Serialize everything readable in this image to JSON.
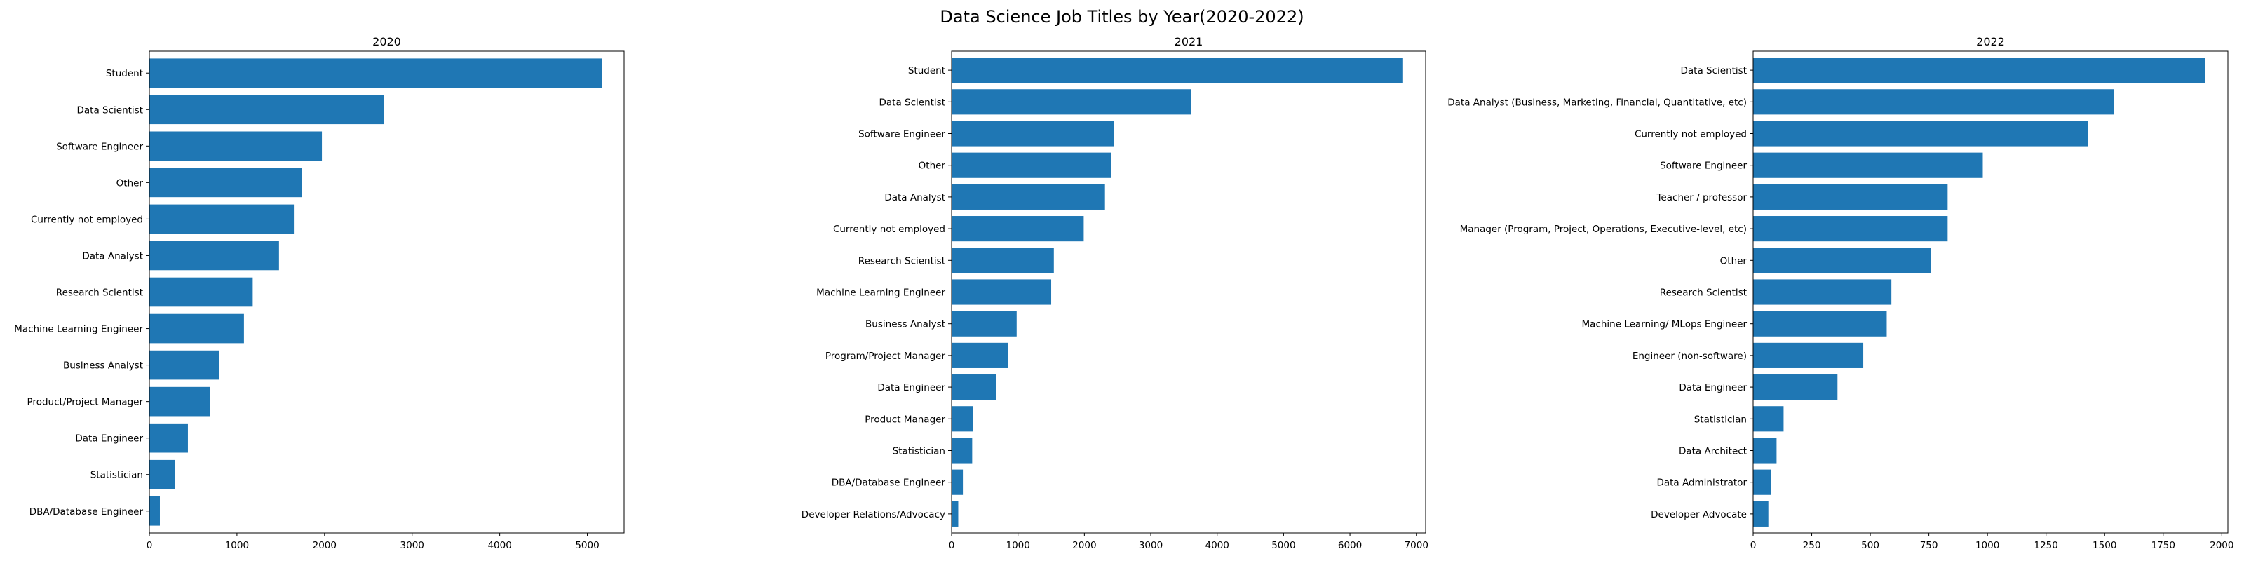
{
  "suptitle": "Data Science Job Titles by Year(2020-2022)",
  "bar_color": "#1f77b4",
  "chart_data": [
    {
      "type": "bar",
      "orientation": "horizontal",
      "title": "2020",
      "categories": [
        "Student",
        "Data Scientist",
        "Software Engineer",
        "Other",
        "Currently not employed",
        "Data Analyst",
        "Research Scientist",
        "Machine Learning Engineer",
        "Business Analyst",
        "Product/Project Manager",
        "Data Engineer",
        "Statistician",
        "DBA/Database Engineer"
      ],
      "values": [
        5170,
        2680,
        1970,
        1740,
        1650,
        1480,
        1180,
        1080,
        800,
        690,
        440,
        290,
        120
      ],
      "xlim": [
        0,
        5420
      ],
      "xticks": [
        0,
        1000,
        2000,
        3000,
        4000,
        5000
      ]
    },
    {
      "type": "bar",
      "orientation": "horizontal",
      "title": "2021",
      "categories": [
        "Student",
        "Data Scientist",
        "Software Engineer",
        "Other",
        "Data Analyst",
        "Currently not employed",
        "Research Scientist",
        "Machine Learning Engineer",
        "Business Analyst",
        "Program/Project Manager",
        "Data Engineer",
        "Product Manager",
        "Statistician",
        "DBA/Database Engineer",
        "Developer Relations/Advocacy"
      ],
      "values": [
        6800,
        3610,
        2450,
        2400,
        2310,
        1990,
        1540,
        1500,
        980,
        850,
        670,
        320,
        310,
        170,
        100
      ],
      "xlim": [
        0,
        7140
      ],
      "xticks": [
        0,
        1000,
        2000,
        3000,
        4000,
        5000,
        6000,
        7000
      ]
    },
    {
      "type": "bar",
      "orientation": "horizontal",
      "title": "2022",
      "categories": [
        "Data Scientist",
        "Data Analyst (Business, Marketing, Financial, Quantitative, etc)",
        "Currently not employed",
        "Software Engineer",
        "Teacher / professor",
        "Manager (Program, Project, Operations, Executive-level, etc)",
        "Other",
        "Research Scientist",
        "Machine Learning/ MLops Engineer",
        "Engineer (non-software)",
        "Data Engineer",
        "Statistician",
        "Data Architect",
        "Data Administrator",
        "Developer Advocate"
      ],
      "values": [
        1930,
        1540,
        1430,
        980,
        830,
        830,
        760,
        590,
        570,
        470,
        360,
        130,
        100,
        75,
        65
      ],
      "xlim": [
        0,
        2026
      ],
      "xticks": [
        0,
        250,
        500,
        750,
        1000,
        1250,
        1500,
        1750,
        2000
      ]
    }
  ]
}
